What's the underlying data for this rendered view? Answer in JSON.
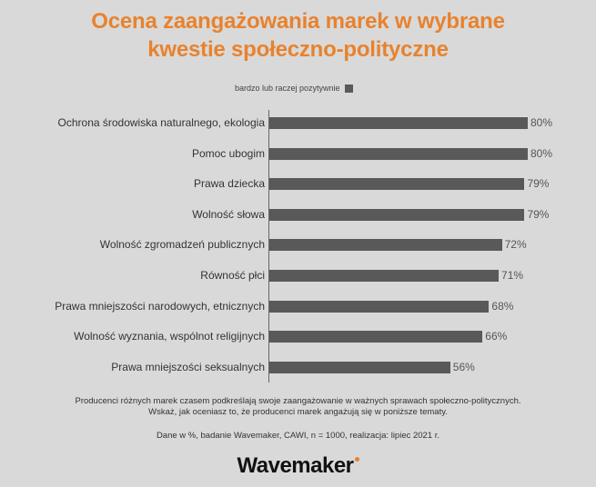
{
  "title": {
    "line1": "Ocena zaangażowania marek w wybrane",
    "line2": "kwestie społeczno-polityczne"
  },
  "legend": {
    "label": "bardzo lub raczej pozytywnie"
  },
  "chart_data": {
    "type": "bar",
    "orientation": "horizontal",
    "title": "Ocena zaangażowania marek w wybrane kwestie społeczno-polityczne",
    "xlabel": "",
    "ylabel": "",
    "xlim": [
      0,
      100
    ],
    "grid": false,
    "legend_position": "top",
    "categories": [
      "Ochrona środowiska naturalnego, ekologia",
      "Pomoc ubogim",
      "Prawa dziecka",
      "Wolność słowa",
      "Wolność zgromadzeń publicznych",
      "Równość płci",
      "Prawa mniejszości narodowych, etnicznych",
      "Wolność wyznania, wspólnot religijnych",
      "Prawa mniejszości seksualnych"
    ],
    "series": [
      {
        "name": "bardzo lub raczej pozytywnie",
        "color": "#595959",
        "values": [
          80,
          80,
          79,
          79,
          72,
          71,
          68,
          66,
          56
        ]
      }
    ],
    "value_labels": [
      "80%",
      "80%",
      "79%",
      "79%",
      "72%",
      "71%",
      "68%",
      "66%",
      "56%"
    ]
  },
  "note": {
    "line1": "Producenci różnych marek czasem podkreślają swoje zaangażowanie w ważnych sprawach społeczno-politycznych.",
    "line2": "Wskaż, jak oceniasz to, że producenci marek angażują się w poniższe tematy."
  },
  "source": "Dane w %, badanie Wavemaker, CAWI, n = 1000, realizacja: lipiec 2021 r.",
  "logo": {
    "text": "Wavemaker"
  },
  "colors": {
    "accent": "#e8822e",
    "bar": "#595959",
    "background": "#d9d9d9"
  }
}
